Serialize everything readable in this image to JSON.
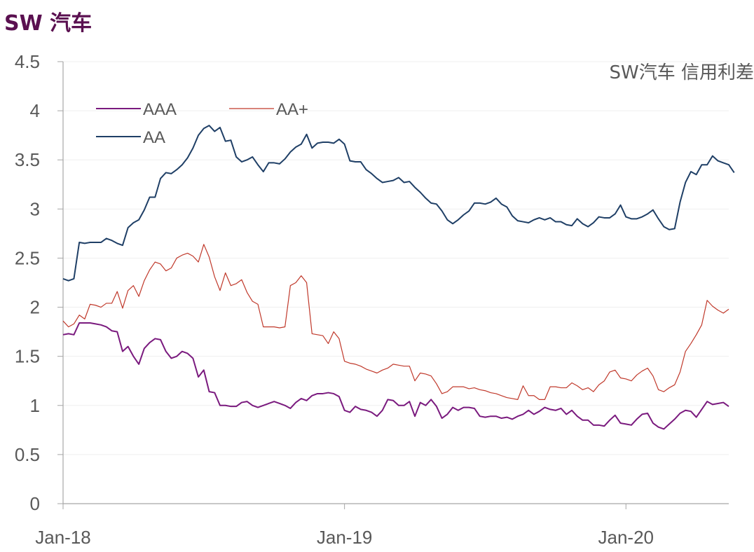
{
  "page": {
    "title": "SW 汽车"
  },
  "colors": {
    "AAA": "#7a1a7e",
    "AA+": "#c0392b",
    "AA": "#1f3f66",
    "axis": "#a6a6a6",
    "grid": "#efefef",
    "text": "#595959",
    "title": "#5a1050"
  },
  "chart_data": {
    "type": "line",
    "title": "SW汽车 信用利差",
    "xlabel": "",
    "ylabel": "",
    "ylim": [
      0,
      4.5
    ],
    "yticks": [
      "0",
      "0.5",
      "1",
      "1.5",
      "2",
      "2.5",
      "3",
      "3.5",
      "4",
      "4.5"
    ],
    "xticks": [
      "Jan-18",
      "Jan-19",
      "Jan-20"
    ],
    "x_tick_positions": [
      0,
      52,
      104
    ],
    "legend": [
      "AAA",
      "AA+",
      "AA"
    ],
    "series": [
      {
        "name": "AAA",
        "values": [
          1.72,
          1.73,
          1.72,
          1.84,
          1.84,
          1.84,
          1.83,
          1.82,
          1.8,
          1.76,
          1.75,
          1.55,
          1.6,
          1.5,
          1.42,
          1.58,
          1.64,
          1.68,
          1.67,
          1.55,
          1.48,
          1.5,
          1.55,
          1.53,
          1.48,
          1.29,
          1.36,
          1.14,
          1.13,
          1.0,
          1.0,
          0.99,
          0.99,
          1.03,
          1.04,
          1.0,
          0.98,
          1.0,
          1.02,
          1.04,
          1.02,
          1.0,
          0.97,
          1.03,
          1.07,
          1.05,
          1.1,
          1.12,
          1.12,
          1.13,
          1.12,
          1.09,
          0.95,
          0.93,
          0.99,
          0.96,
          0.95,
          0.93,
          0.89,
          0.95,
          1.06,
          1.05,
          1.0,
          1.0,
          1.04,
          0.89,
          1.03,
          1.0,
          1.06,
          0.99,
          0.87,
          0.91,
          0.98,
          0.95,
          0.98,
          0.98,
          0.97,
          0.89,
          0.88,
          0.89,
          0.89,
          0.87,
          0.88,
          0.86,
          0.89,
          0.91,
          0.95,
          0.91,
          0.94,
          0.98,
          0.96,
          0.95,
          0.97,
          0.91,
          0.95,
          0.89,
          0.85,
          0.85,
          0.8,
          0.8,
          0.79,
          0.85,
          0.9,
          0.82,
          0.81,
          0.8,
          0.86,
          0.91,
          0.92,
          0.82,
          0.78,
          0.76,
          0.81,
          0.86,
          0.92,
          0.95,
          0.94,
          0.88,
          0.96,
          1.04,
          1.01,
          1.02,
          1.03,
          0.99
        ]
      },
      {
        "name": "AA+",
        "values": [
          1.86,
          1.8,
          1.83,
          1.92,
          1.88,
          2.03,
          2.02,
          2.0,
          2.04,
          2.04,
          2.16,
          1.99,
          2.17,
          2.22,
          2.11,
          2.27,
          2.38,
          2.46,
          2.44,
          2.37,
          2.4,
          2.5,
          2.53,
          2.55,
          2.52,
          2.46,
          2.64,
          2.51,
          2.31,
          2.17,
          2.35,
          2.22,
          2.24,
          2.28,
          2.15,
          2.06,
          2.03,
          1.8,
          1.8,
          1.8,
          1.79,
          1.8,
          2.22,
          2.25,
          2.32,
          2.25,
          1.73,
          1.72,
          1.71,
          1.63,
          1.75,
          1.68,
          1.45,
          1.43,
          1.42,
          1.4,
          1.37,
          1.35,
          1.33,
          1.36,
          1.38,
          1.42,
          1.41,
          1.4,
          1.4,
          1.25,
          1.33,
          1.32,
          1.3,
          1.22,
          1.12,
          1.14,
          1.19,
          1.19,
          1.19,
          1.17,
          1.18,
          1.16,
          1.15,
          1.13,
          1.12,
          1.1,
          1.08,
          1.07,
          1.06,
          1.2,
          1.1,
          1.1,
          1.06,
          1.06,
          1.19,
          1.19,
          1.18,
          1.18,
          1.23,
          1.2,
          1.16,
          1.18,
          1.14,
          1.21,
          1.25,
          1.34,
          1.36,
          1.28,
          1.27,
          1.25,
          1.31,
          1.35,
          1.38,
          1.3,
          1.16,
          1.14,
          1.18,
          1.21,
          1.34,
          1.55,
          1.63,
          1.72,
          1.82,
          2.07,
          2.01,
          1.97,
          1.94,
          1.98
        ]
      },
      {
        "name": "AA",
        "values": [
          2.29,
          2.27,
          2.29,
          2.66,
          2.65,
          2.66,
          2.66,
          2.66,
          2.7,
          2.68,
          2.65,
          2.63,
          2.81,
          2.86,
          2.89,
          2.99,
          3.12,
          3.12,
          3.31,
          3.37,
          3.36,
          3.4,
          3.45,
          3.52,
          3.62,
          3.75,
          3.82,
          3.85,
          3.79,
          3.83,
          3.69,
          3.7,
          3.53,
          3.48,
          3.5,
          3.53,
          3.45,
          3.38,
          3.47,
          3.47,
          3.46,
          3.51,
          3.58,
          3.63,
          3.66,
          3.76,
          3.62,
          3.67,
          3.68,
          3.68,
          3.67,
          3.71,
          3.66,
          3.49,
          3.48,
          3.48,
          3.4,
          3.36,
          3.31,
          3.27,
          3.28,
          3.29,
          3.32,
          3.27,
          3.28,
          3.22,
          3.17,
          3.11,
          3.06,
          3.05,
          2.98,
          2.89,
          2.85,
          2.89,
          2.94,
          2.98,
          3.06,
          3.06,
          3.05,
          3.07,
          3.11,
          3.05,
          3.02,
          2.93,
          2.88,
          2.87,
          2.86,
          2.89,
          2.91,
          2.89,
          2.91,
          2.87,
          2.87,
          2.84,
          2.83,
          2.9,
          2.85,
          2.82,
          2.86,
          2.92,
          2.91,
          2.91,
          2.95,
          3.04,
          2.92,
          2.9,
          2.9,
          2.92,
          2.95,
          2.99,
          2.9,
          2.82,
          2.79,
          2.8,
          3.07,
          3.27,
          3.38,
          3.35,
          3.45,
          3.45,
          3.54,
          3.49,
          3.47,
          3.45,
          3.37
        ]
      }
    ]
  }
}
